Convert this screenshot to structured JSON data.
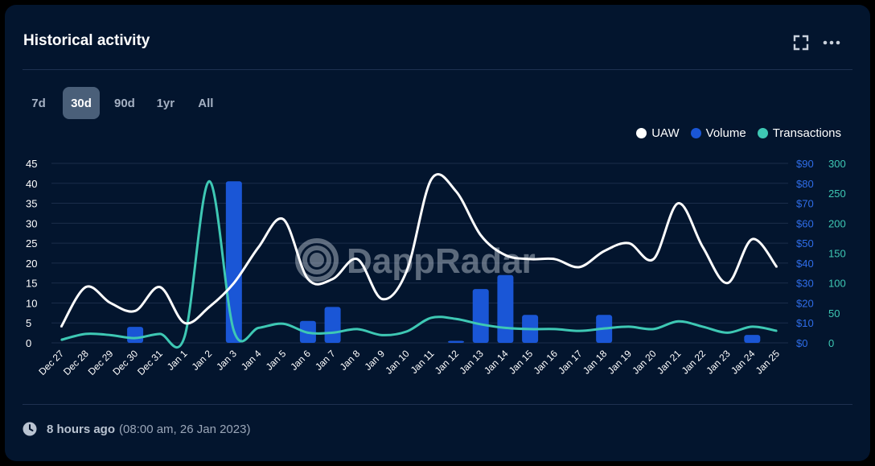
{
  "title": "Historical activity",
  "tabs": [
    {
      "label": "7d",
      "active": false
    },
    {
      "label": "30d",
      "active": true
    },
    {
      "label": "90d",
      "active": false
    },
    {
      "label": "1yr",
      "active": false
    },
    {
      "label": "All",
      "active": false
    }
  ],
  "legend": [
    {
      "label": "UAW",
      "color": "#ffffff"
    },
    {
      "label": "Volume",
      "color": "#1a56d6"
    },
    {
      "label": "Transactions",
      "color": "#3ec8b4"
    }
  ],
  "watermark": "DappRadar",
  "footer": {
    "relative": "8 hours ago",
    "absolute": "(08:00 am, 26 Jan 2023)"
  },
  "icons": {
    "expand": "expand-icon",
    "more": "more-icon",
    "clock": "clock-icon"
  },
  "chart_data": {
    "type": "line",
    "categories": [
      "Dec 27",
      "Dec 28",
      "Dec 29",
      "Dec 30",
      "Dec 31",
      "Jan 1",
      "Jan 2",
      "Jan 3",
      "Jan 4",
      "Jan 5",
      "Jan 6",
      "Jan 7",
      "Jan 8",
      "Jan 9",
      "Jan 10",
      "Jan 11",
      "Jan 12",
      "Jan 13",
      "Jan 14",
      "Jan 15",
      "Jan 16",
      "Jan 17",
      "Jan 18",
      "Jan 19",
      "Jan 20",
      "Jan 21",
      "Jan 22",
      "Jan 23",
      "Jan 24",
      "Jan 25"
    ],
    "y_left": {
      "ticks": [
        "0",
        "5",
        "10",
        "15",
        "20",
        "25",
        "30",
        "35",
        "40",
        "45"
      ],
      "ylim": [
        0,
        45
      ]
    },
    "y_volume": {
      "ticks": [
        "$0",
        "$10",
        "$20",
        "$30",
        "$40",
        "$50",
        "$60",
        "$70",
        "$80",
        "$90"
      ],
      "ylim": [
        0,
        90
      ]
    },
    "y_transactions": {
      "ticks": [
        "0",
        "50",
        "100",
        "150",
        "200",
        "250",
        "300"
      ],
      "ylim": [
        0,
        300
      ]
    },
    "series": [
      {
        "name": "UAW",
        "axis": "left",
        "type": "line",
        "color": "#ffffff",
        "values": [
          4,
          14,
          10,
          8,
          14,
          5,
          9,
          15,
          24,
          31,
          16,
          16,
          21,
          11,
          18,
          41,
          38,
          27,
          22,
          21,
          21,
          19,
          23,
          25,
          21,
          35,
          24,
          15,
          26,
          19
        ]
      },
      {
        "name": "Volume",
        "axis": "volume",
        "type": "bar",
        "color": "#1a56d6",
        "values": [
          0,
          0,
          0,
          8,
          0,
          0,
          0,
          81,
          0,
          0,
          11,
          18,
          0,
          0,
          0,
          0,
          1,
          27,
          34,
          14,
          0,
          0,
          14,
          0,
          0,
          0,
          0,
          0,
          4,
          0
        ]
      },
      {
        "name": "Transactions",
        "axis": "transactions",
        "type": "line",
        "color": "#3ec8b4",
        "values": [
          5,
          15,
          13,
          8,
          15,
          10,
          270,
          20,
          25,
          32,
          17,
          17,
          23,
          13,
          19,
          42,
          40,
          31,
          25,
          23,
          23,
          20,
          24,
          27,
          23,
          36,
          27,
          17,
          27,
          20
        ]
      }
    ]
  }
}
